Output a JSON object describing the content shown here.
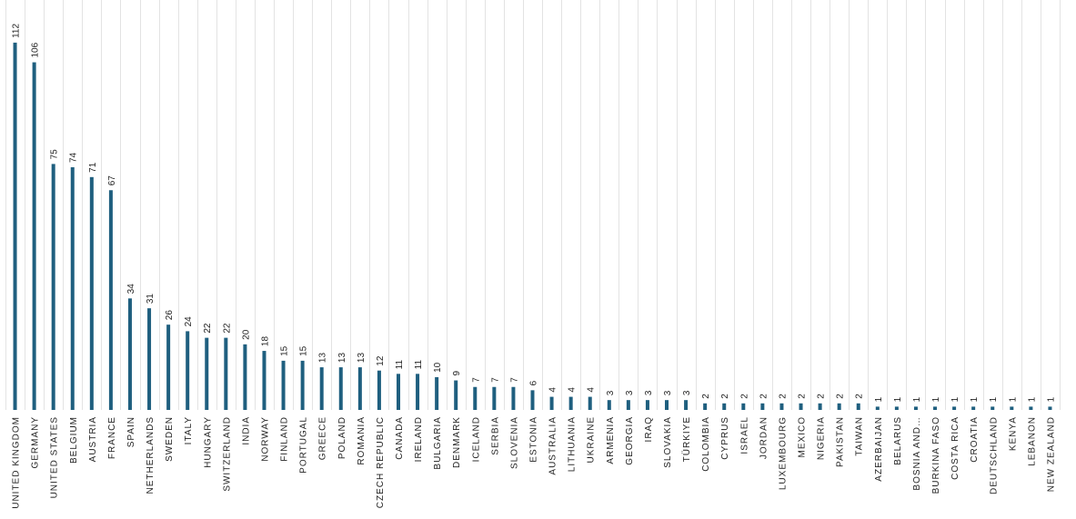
{
  "chart_data": {
    "type": "bar",
    "categories": [
      "UNITED KINGDOM",
      "GERMANY",
      "UNITED STATES",
      "BELGIUM",
      "AUSTRIA",
      "FRANCE",
      "SPAIN",
      "NETHERLANDS",
      "SWEDEN",
      "ITALY",
      "HUNGARY",
      "SWITZERLAND",
      "INDIA",
      "NORWAY",
      "FINLAND",
      "PORTUGAL",
      "GREECE",
      "POLAND",
      "ROMANIA",
      "CZECH REPUBLIC",
      "CANADA",
      "IRELAND",
      "BULGARIA",
      "DENMARK",
      "ICELAND",
      "SERBIA",
      "SLOVENIA",
      "ESTONIA",
      "AUSTRALIA",
      "LITHUANIA",
      "UKRAINE",
      "ARMENIA",
      "GEORGIA",
      "IRAQ",
      "SLOVAKIA",
      "TÜRKIYE",
      "COLOMBIA",
      "CYPRUS",
      "ISRAEL",
      "JORDAN",
      "LUXEMBOURG",
      "MEXICO",
      "NIGERIA",
      "PAKISTAN",
      "TAIWAN",
      "AZERBAIJAN",
      "BELARUS",
      "BOSNIA AND…",
      "BURKINA FASO",
      "COSTA RICA",
      "CROATIA",
      "DEUTSCHLAND",
      "KENYA",
      "LEBANON",
      "NEW ZEALAND"
    ],
    "values": [
      112,
      106,
      75,
      74,
      71,
      67,
      34,
      31,
      26,
      24,
      22,
      22,
      20,
      18,
      15,
      15,
      13,
      13,
      13,
      12,
      11,
      11,
      10,
      9,
      7,
      7,
      7,
      6,
      4,
      4,
      4,
      3,
      3,
      3,
      3,
      3,
      2,
      2,
      2,
      2,
      2,
      2,
      2,
      2,
      2,
      1,
      1,
      1,
      1,
      1,
      1,
      1,
      1,
      1,
      1
    ],
    "ylim": [
      0,
      125
    ],
    "grid": true,
    "bar_color": "#1f5f7f"
  }
}
